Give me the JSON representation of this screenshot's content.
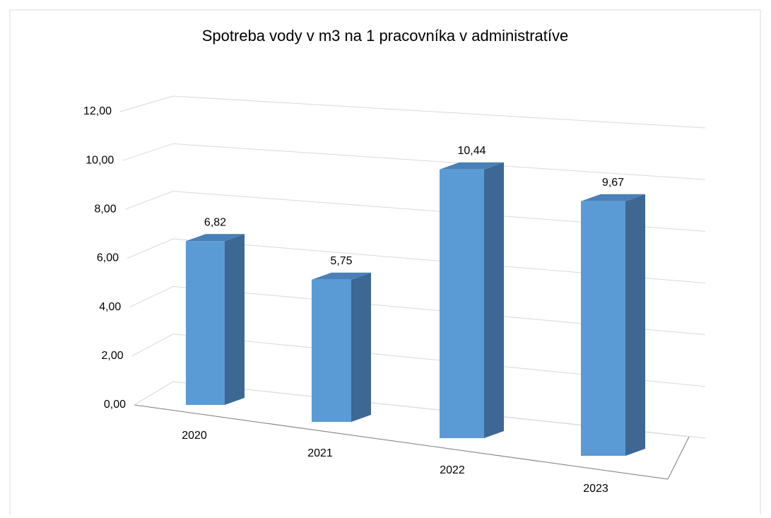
{
  "chart_data": {
    "type": "bar3d",
    "title": "Spotreba vody v m3 na 1 pracovníka v administratíve",
    "categories": [
      "2020",
      "2021",
      "2022",
      "2023"
    ],
    "values": [
      6.82,
      5.75,
      10.44,
      9.67
    ],
    "value_labels": [
      "6,82",
      "5,75",
      "10,44",
      "9,67"
    ],
    "color": "#5b9bd5",
    "ylim": [
      0,
      12
    ],
    "yticks": [
      {
        "value": 0,
        "label": "0,00"
      },
      {
        "value": 2,
        "label": "2,00"
      },
      {
        "value": 4,
        "label": "4,00"
      },
      {
        "value": 6,
        "label": "6,00"
      },
      {
        "value": 8,
        "label": "8,00"
      },
      {
        "value": 10,
        "label": "10,00"
      },
      {
        "value": 12,
        "label": "12,00"
      }
    ],
    "grid": true
  }
}
